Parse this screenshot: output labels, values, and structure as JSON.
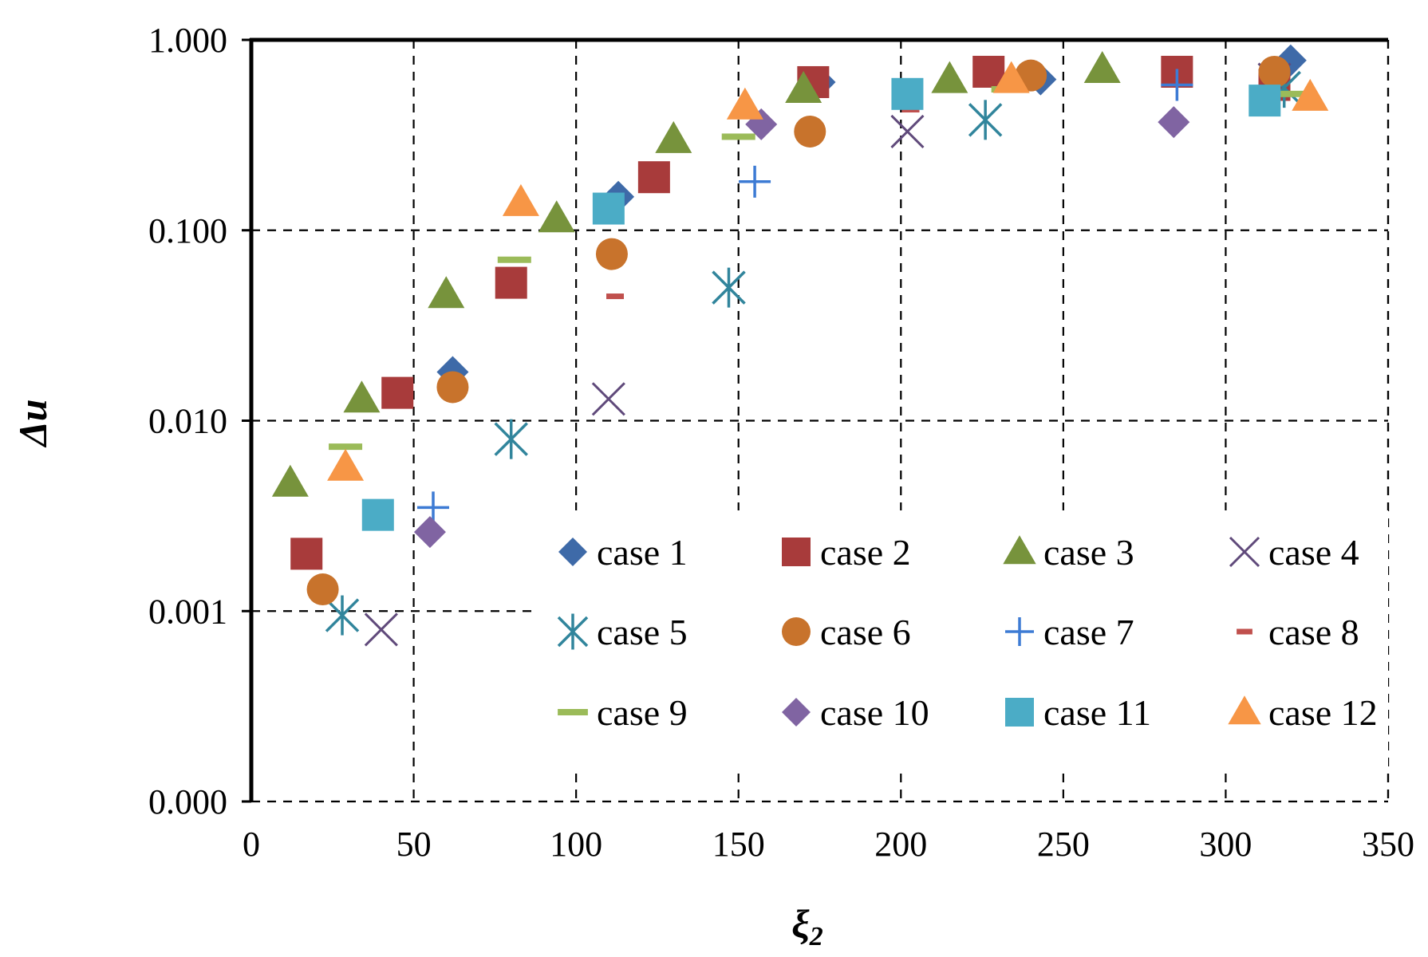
{
  "chart_data": {
    "type": "scatter",
    "title": "",
    "xlabel": "ξ2",
    "xlabel_main": "ξ",
    "xlabel_sub": "2",
    "ylabel": "Δ̄u",
    "ylabel_main": "Δ",
    "ylabel_u": "u",
    "ylabel_bar": "¯",
    "x_scale": "linear",
    "y_scale": "log",
    "xlim": [
      0,
      350
    ],
    "ylim": [
      0.0001,
      1
    ],
    "x_ticks": [
      0,
      50,
      100,
      150,
      200,
      250,
      300,
      350
    ],
    "x_tick_labels": [
      "0",
      "50",
      "100",
      "150",
      "200",
      "250",
      "300",
      "350"
    ],
    "y_ticks": [
      0.0001,
      0.001,
      0.01,
      0.1,
      1
    ],
    "y_tick_labels": [
      "0.000",
      "0.001",
      "0.010",
      "0.100",
      "1.000"
    ],
    "grid": true,
    "legend_position": "lower-right",
    "series": [
      {
        "name": "case 1",
        "marker": "diamond",
        "color": "#3e6aa8",
        "points": [
          [
            62,
            0.018
          ],
          [
            113,
            0.15
          ],
          [
            175,
            0.6
          ],
          [
            243,
            0.62
          ],
          [
            320,
            0.78
          ]
        ]
      },
      {
        "name": "case 2",
        "marker": "square",
        "color": "#a83b3b",
        "points": [
          [
            17,
            0.002
          ],
          [
            45,
            0.014
          ],
          [
            80,
            0.053
          ],
          [
            124,
            0.19
          ],
          [
            173,
            0.6
          ],
          [
            227,
            0.68
          ],
          [
            285,
            0.68
          ],
          [
            315,
            0.58
          ]
        ]
      },
      {
        "name": "case 3",
        "marker": "triangle",
        "color": "#77933c",
        "points": [
          [
            12,
            0.0047
          ],
          [
            34,
            0.013
          ],
          [
            60,
            0.046
          ],
          [
            94,
            0.115
          ],
          [
            130,
            0.3
          ],
          [
            170,
            0.55
          ],
          [
            215,
            0.62
          ],
          [
            262,
            0.7
          ]
        ]
      },
      {
        "name": "case 4",
        "marker": "x",
        "color": "#604a7b",
        "points": [
          [
            40,
            0.0008
          ],
          [
            110,
            0.013
          ],
          [
            202,
            0.33
          ],
          [
            315,
            0.62
          ]
        ]
      },
      {
        "name": "case 5",
        "marker": "star",
        "color": "#31859c",
        "points": [
          [
            28,
            0.00095
          ],
          [
            80,
            0.008
          ],
          [
            147,
            0.05
          ],
          [
            226,
            0.38
          ],
          [
            318,
            0.56
          ]
        ]
      },
      {
        "name": "case 6",
        "marker": "circle",
        "color": "#c8732c",
        "points": [
          [
            22,
            0.0013
          ],
          [
            62,
            0.015
          ],
          [
            111,
            0.075
          ],
          [
            172,
            0.33
          ],
          [
            240,
            0.65
          ],
          [
            315,
            0.68
          ]
        ]
      },
      {
        "name": "case 7",
        "marker": "plus",
        "color": "#3d7bd4",
        "points": [
          [
            56,
            0.0035
          ],
          [
            155,
            0.18
          ],
          [
            285,
            0.58
          ]
        ]
      },
      {
        "name": "case 8",
        "marker": "dash",
        "color": "#c0504d",
        "points": [
          [
            112,
            0.045
          ],
          [
            203,
            0.43
          ],
          [
            313,
            0.55
          ]
        ]
      },
      {
        "name": "case 9",
        "marker": "longdash",
        "color": "#9bbb59",
        "points": [
          [
            29,
            0.0073
          ],
          [
            81,
            0.07
          ],
          [
            150,
            0.31
          ],
          [
            233,
            0.55
          ],
          [
            322,
            0.52
          ]
        ]
      },
      {
        "name": "case 10",
        "marker": "diamond",
        "color": "#8064a2",
        "points": [
          [
            55,
            0.0026
          ],
          [
            157,
            0.36
          ],
          [
            284,
            0.37
          ]
        ]
      },
      {
        "name": "case 11",
        "marker": "square",
        "color": "#4bacc6",
        "points": [
          [
            39,
            0.0032
          ],
          [
            110,
            0.13
          ],
          [
            202,
            0.52
          ],
          [
            312,
            0.48
          ]
        ]
      },
      {
        "name": "case 12",
        "marker": "triangle",
        "color": "#f79646",
        "points": [
          [
            29,
            0.0057
          ],
          [
            83,
            0.14
          ],
          [
            152,
            0.45
          ],
          [
            234,
            0.62
          ],
          [
            326,
            0.5
          ]
        ]
      }
    ]
  }
}
